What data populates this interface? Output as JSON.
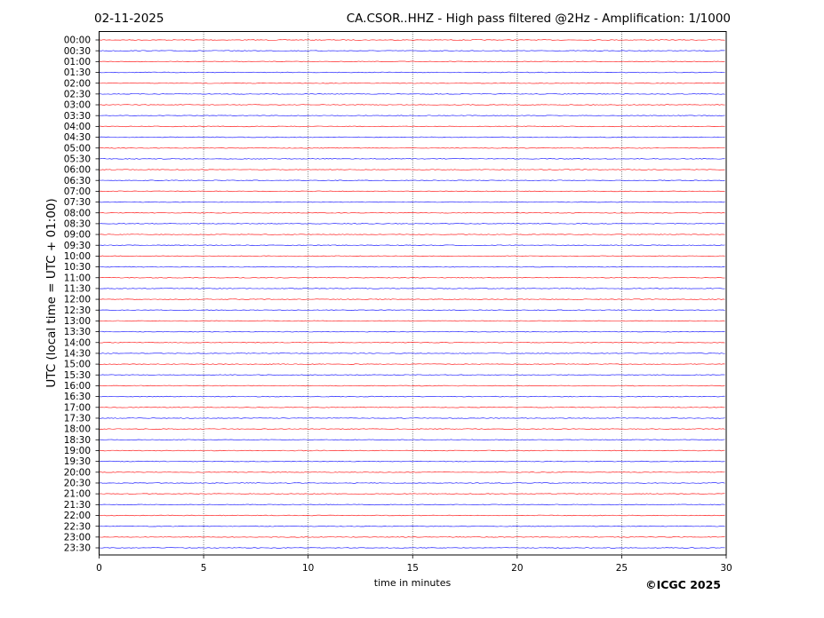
{
  "header": {
    "date": "02-11-2025",
    "title": "CA.CSOR..HHZ - High pass filtered @2Hz - Amplification: 1/1000"
  },
  "footer": {
    "copyright": "©ICGC 2025"
  },
  "chart_data": {
    "type": "line",
    "subtype": "helicorder",
    "xlabel": "time in minutes",
    "ylabel": "UTC (local time = UTC + 01:00)",
    "xlim": [
      0,
      30
    ],
    "xticks": [
      0,
      5,
      10,
      15,
      20,
      25,
      30
    ],
    "grid": "vertical dotted lines at 5-minute ticks",
    "colors": {
      "hour_trace": "#ff0000",
      "half_hour_trace": "#0000ff",
      "grid": "#555555"
    },
    "rows": [
      "00:00",
      "00:30",
      "01:00",
      "01:30",
      "02:00",
      "02:30",
      "03:00",
      "03:30",
      "04:00",
      "04:30",
      "05:00",
      "05:30",
      "06:00",
      "06:30",
      "07:00",
      "07:30",
      "08:00",
      "08:30",
      "09:00",
      "09:30",
      "10:00",
      "10:30",
      "11:00",
      "11:30",
      "12:00",
      "12:30",
      "13:00",
      "13:30",
      "14:00",
      "14:30",
      "15:00",
      "15:30",
      "16:00",
      "16:30",
      "17:00",
      "17:30",
      "18:00",
      "18:30",
      "19:00",
      "19:30",
      "20:00",
      "20:30",
      "21:00",
      "21:30",
      "22:00",
      "22:30",
      "23:00",
      "23:30"
    ]
  }
}
